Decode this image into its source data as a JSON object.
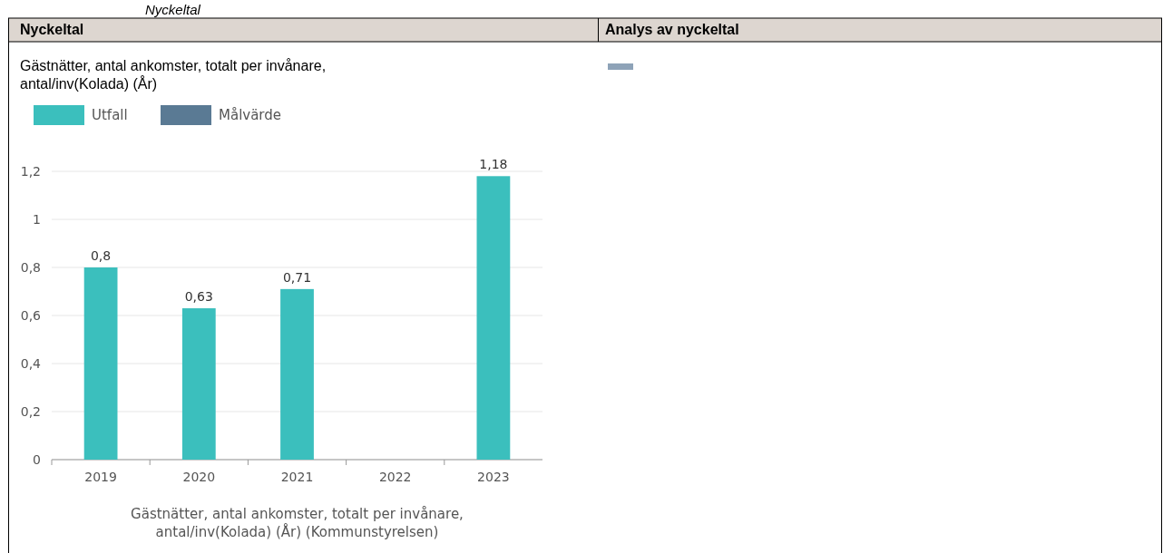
{
  "chart_data": {
    "type": "bar",
    "title": "Gästnätter, antal ankomster, totalt per invånare, antal/inv(Kolada) (År)",
    "xlabel": "Gästnätter, antal ankomster, totalt per invånare, antal/inv(Kolada) (År) (Kommunstyrelsen)",
    "annotations": [
      "Nyckeltal",
      "Nyckeltal",
      "Analys av nyckeltal"
    ],
    "categories": [
      "2019",
      "2020",
      "2021",
      "2022",
      "2023"
    ],
    "series": [
      {
        "name": "Utfall",
        "color": "#3bbfbd",
        "values": [
          0.8,
          0.63,
          0.71,
          null,
          1.18
        ],
        "value_labels": [
          "0,8",
          "0,63",
          "0,71",
          null,
          "1,18"
        ]
      },
      {
        "name": "Målvärde",
        "color": "#5a7a94",
        "values": [
          null,
          null,
          null,
          null,
          null
        ]
      }
    ],
    "ylim": [
      0,
      1.2
    ],
    "yticks": [
      0,
      {
        "value": 0.2,
        "label": "0,2"
      },
      {
        "value": 0.4,
        "label": "0,4"
      },
      {
        "value": 0.6,
        "label": "0,6"
      },
      {
        "value": 0.8,
        "label": "0,8"
      },
      1,
      {
        "value": 1.2,
        "label": "1,2"
      }
    ],
    "grid": "y",
    "legend": "top left"
  }
}
